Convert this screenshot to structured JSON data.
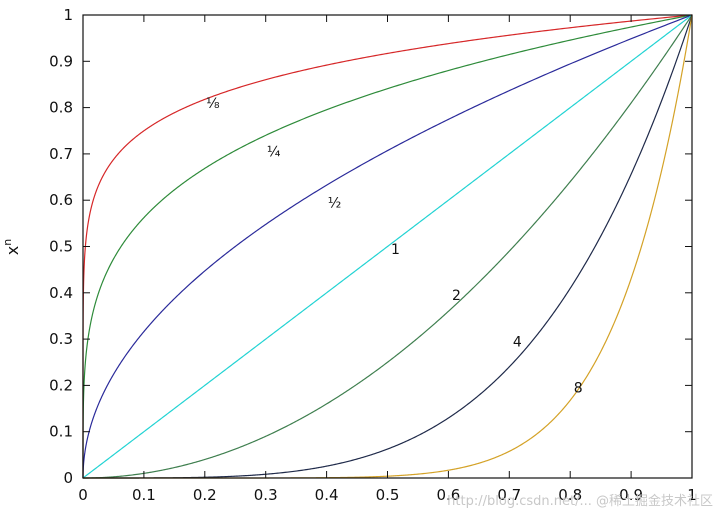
{
  "chart_data": {
    "type": "line",
    "title": "",
    "xlabel": "",
    "ylabel": "x",
    "ylabel_superscript": "n",
    "xlim": [
      0,
      1
    ],
    "ylim": [
      0,
      1
    ],
    "x_ticks": [
      "0",
      "0.1",
      "0.2",
      "0.3",
      "0.4",
      "0.5",
      "0.6",
      "0.7",
      "0.8",
      "0.9",
      "1"
    ],
    "y_ticks": [
      "0",
      "0.1",
      "0.2",
      "0.3",
      "0.4",
      "0.5",
      "0.6",
      "0.7",
      "0.8",
      "0.9",
      "1"
    ],
    "grid": false,
    "legend": "none",
    "series": [
      {
        "label": "⅛",
        "exponent": 0.125,
        "color": "#d62728",
        "label_x": 0.2,
        "label_y": 0.81
      },
      {
        "label": "¼",
        "exponent": 0.25,
        "color": "#2e8b3a",
        "label_x": 0.3,
        "label_y": 0.705
      },
      {
        "label": "½",
        "exponent": 0.5,
        "color": "#2a2a9a",
        "label_x": 0.4,
        "label_y": 0.595
      },
      {
        "label": "1",
        "exponent": 1,
        "color": "#22d3d3",
        "label_x": 0.5,
        "label_y": 0.495
      },
      {
        "label": "2",
        "exponent": 2,
        "color": "#3f7f4f",
        "label_x": 0.6,
        "label_y": 0.395
      },
      {
        "label": "4",
        "exponent": 4,
        "color": "#1f2a4a",
        "label_x": 0.7,
        "label_y": 0.295
      },
      {
        "label": "8",
        "exponent": 8,
        "color": "#d4a227",
        "label_x": 0.8,
        "label_y": 0.195
      }
    ]
  },
  "watermark": "http://blog.csdn.net/... @稀土掘金技术社区"
}
